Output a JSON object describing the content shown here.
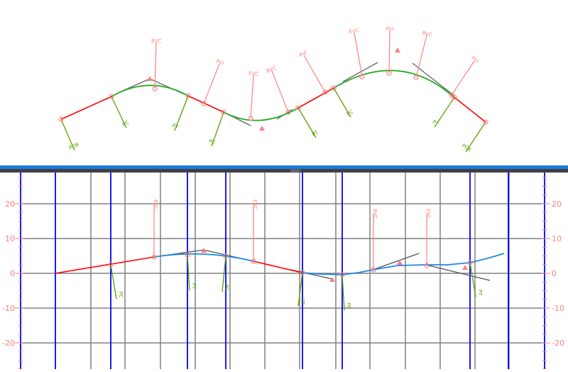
{
  "plan_view": {
    "alignment_labels": [
      "POB",
      "PC",
      "PT",
      "PC",
      "PT",
      "PC",
      "PT",
      "POE"
    ],
    "vertical_labels": [
      "BVC",
      "PVI",
      "EVC",
      "BVC",
      "PVI",
      "EVC",
      "PVI",
      "BVC",
      "PVI"
    ]
  },
  "profile_view": {
    "y_ticks": [
      "20",
      "10",
      "0",
      "-10",
      "-20"
    ],
    "alignment_labels": [
      "PC",
      "PT",
      "PC",
      "PT",
      "PC",
      "PT"
    ],
    "vertical_labels": [
      "BVC",
      "EVC",
      "BVC",
      "EVC"
    ]
  },
  "colors": {
    "tangent": "#ff0000",
    "plan_curve": "#22aa22",
    "profile_curve": "#1e88e5",
    "leader_alignment": "#5aa000",
    "leader_vertical": "#ff8080",
    "station_line": "#0000ff",
    "grid": "#808080",
    "divider": "#1a7be0"
  }
}
